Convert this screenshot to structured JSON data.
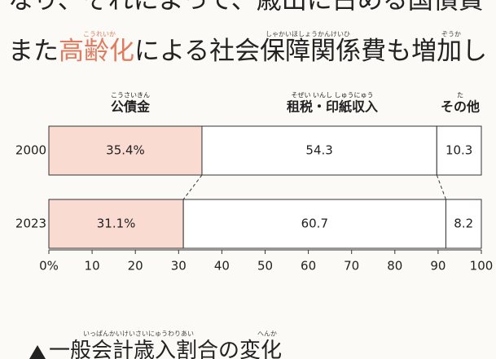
{
  "body_text": {
    "line1": "なり、それによって、歳出に占める国債費",
    "line2": [
      "また",
      "高齢化",
      "による",
      "社会保障関係費",
      "も",
      "増加",
      "し"
    ],
    "ruby": [
      "こうれいか",
      "しゃかいほしょうかんけいひ",
      "ぞうか"
    ]
  },
  "chart_data": {
    "type": "stacked-bar-horizontal",
    "categories": [
      "2000",
      "2023"
    ],
    "series": [
      {
        "name": "公債金",
        "ruby": "こうさいきん",
        "color": "#f9dbd2",
        "values": [
          35.4,
          31.1
        ],
        "value_labels": [
          "35.4%",
          "31.1%"
        ]
      },
      {
        "name": "租税・印紙収入",
        "ruby": "そぜい いんし しゅうにゅう",
        "color": "#ffffff",
        "values": [
          54.3,
          60.7
        ]
      },
      {
        "name": "その他",
        "ruby": "た",
        "color": "#ffffff",
        "values": [
          10.3,
          8.2
        ]
      }
    ],
    "xlim": [
      0,
      100
    ],
    "xticks": [
      {
        "value": 0,
        "label": "0%"
      },
      10,
      20,
      30,
      40,
      50,
      60,
      70,
      80,
      90,
      100
    ]
  },
  "caption": {
    "text": "一般会計歳入割合の変化",
    "ruby": [
      "いっぱんかいけいさいにゅうわりあい",
      "へんか"
    ]
  }
}
